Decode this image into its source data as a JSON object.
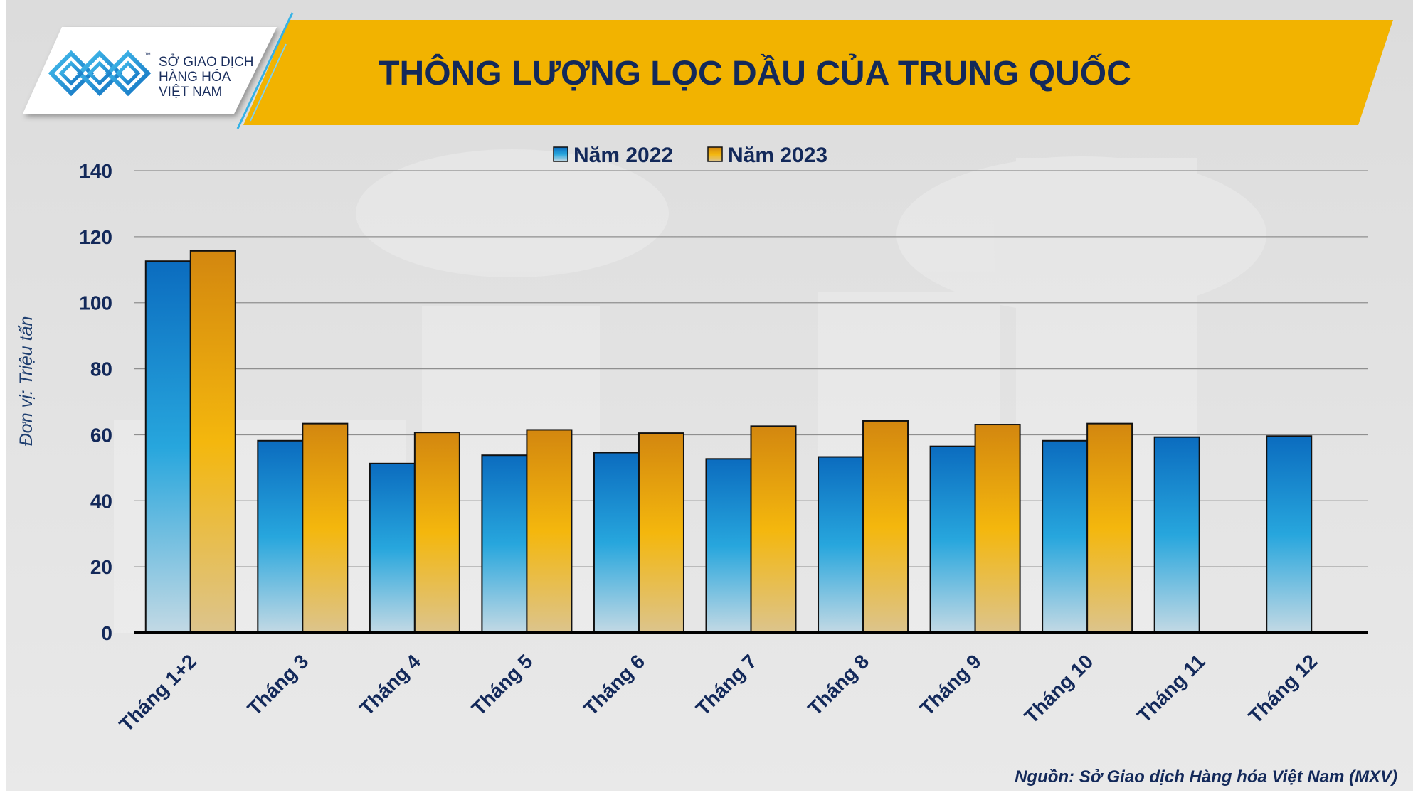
{
  "brand": {
    "logo_lines": [
      "SỞ GIAO DỊCH",
      "HÀNG HÓA",
      "VIỆT NAM"
    ],
    "trademark": "™"
  },
  "source": "Nguồn: Sở Giao dịch Hàng hóa Việt Nam (MXV)",
  "colors": {
    "banner": "#f2b300",
    "title_text": "#13295a",
    "series_2022_top": "#0b6cbf",
    "series_2022_mid": "#27a6dd",
    "series_2022_bottom": "#c3d9e4",
    "series_2023_top": "#d3870f",
    "series_2023_mid": "#f4b70d",
    "series_2023_bottom": "#dcc48d",
    "logo_accent": "#2aa9e2"
  },
  "icons": [
    "mxv-logo-icon"
  ],
  "chart_data": {
    "type": "bar",
    "title": "THÔNG LƯỢNG LỌC DẦU CỦA TRUNG QUỐC",
    "ylabel": "Đơn vị: Triệu tấn",
    "categories": [
      "Tháng 1+2",
      "Tháng 3",
      "Tháng 4",
      "Tháng 5",
      "Tháng 6",
      "Tháng 7",
      "Tháng 8",
      "Tháng 9",
      "Tháng 10",
      "Tháng 11",
      "Tháng 12"
    ],
    "series": [
      {
        "name": "Năm 2022",
        "values": [
          112.6,
          58.2,
          51.3,
          53.8,
          54.6,
          52.7,
          53.3,
          56.5,
          58.2,
          59.3,
          59.6
        ]
      },
      {
        "name": "Năm 2023",
        "values": [
          115.7,
          63.4,
          60.7,
          61.5,
          60.5,
          62.6,
          64.2,
          63.1,
          63.4,
          null,
          null
        ]
      }
    ],
    "ylim": [
      0,
      140
    ],
    "yticks": [
      0,
      20,
      40,
      60,
      80,
      100,
      120,
      140
    ],
    "grid": true,
    "legend_position": "top-center"
  }
}
